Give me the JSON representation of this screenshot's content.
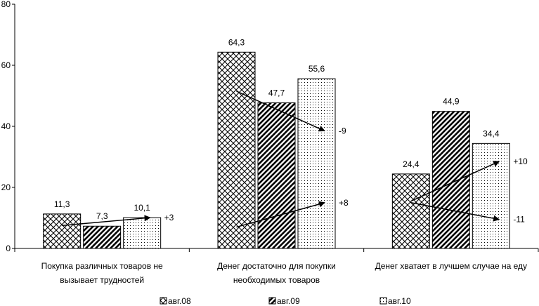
{
  "chart_data": {
    "type": "bar",
    "title": "",
    "xlabel": "",
    "ylabel": "",
    "ylim": [
      0,
      80
    ],
    "yticks": [
      0,
      20,
      40,
      60,
      80
    ],
    "grid": false,
    "legend_position": "bottom",
    "categories": [
      [
        "Покупка различных товаров не",
        "вызывает трудностей"
      ],
      [
        "Денег достаточно для покупки",
        "необходимых товаров"
      ],
      [
        "Денег хватает в лучшем случае на еду"
      ]
    ],
    "series": [
      {
        "name": "авг.08",
        "pattern": "crosshatch",
        "values": [
          11.3,
          64.3,
          24.4
        ],
        "labels": [
          "11,3",
          "64,3",
          "24,4"
        ]
      },
      {
        "name": "авг.09",
        "pattern": "diagonal",
        "values": [
          7.3,
          47.7,
          44.9
        ],
        "labels": [
          "7,3",
          "47,7",
          "44,9"
        ]
      },
      {
        "name": "авг.10",
        "pattern": "dots",
        "values": [
          10.1,
          55.6,
          34.4
        ],
        "labels": [
          "10,1",
          "55,6",
          "34,4"
        ]
      }
    ],
    "annotations": [
      {
        "category": 0,
        "from_value": 7.5,
        "to_value": 10.1,
        "label": "+3"
      },
      {
        "category": 1,
        "from_value": 51.5,
        "to_value": 38.5,
        "label": "-9"
      },
      {
        "category": 1,
        "from_value": 7.0,
        "to_value": 15.0,
        "label": "+8"
      },
      {
        "category": 2,
        "from_value": 15.5,
        "to_value": 28.5,
        "label": "+10"
      },
      {
        "category": 2,
        "from_value": 15.0,
        "to_value": 9.5,
        "label": "-11"
      }
    ]
  }
}
